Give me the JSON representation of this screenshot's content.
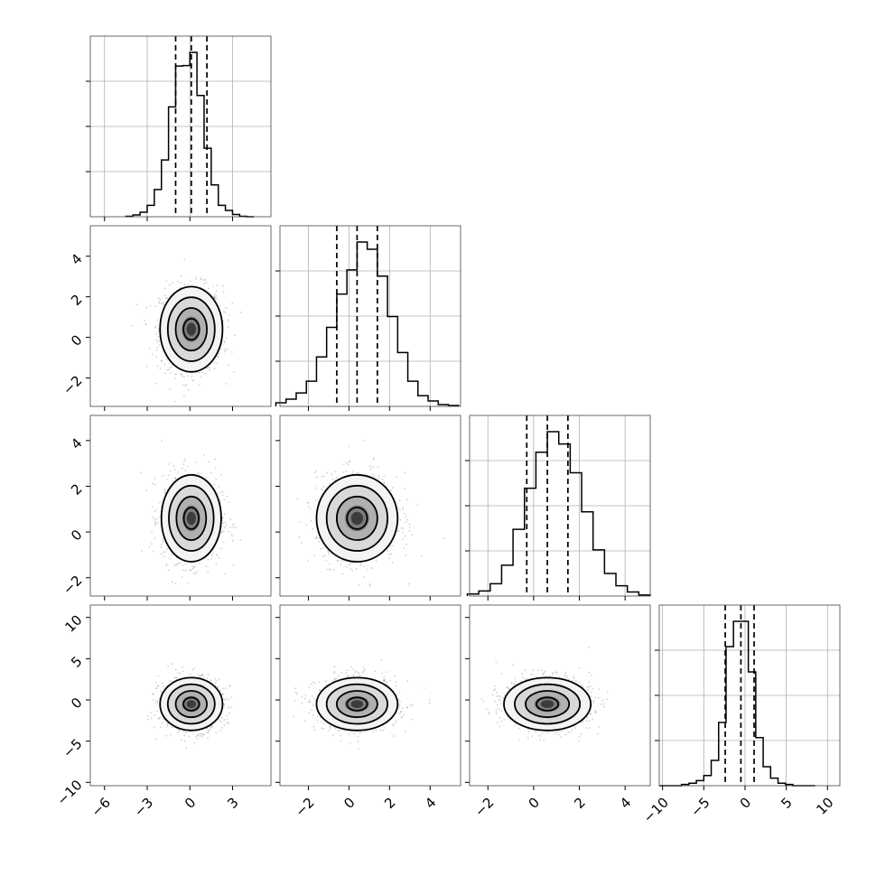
{
  "chart_data": {
    "type": "corner",
    "n_params": 4,
    "grid": true,
    "colors": {
      "line": "#000000",
      "grid": "#b0b0b0",
      "scatter": "#7a7a7a",
      "frame": "#444444"
    },
    "ranges": [
      [
        -7,
        5.7
      ],
      [
        -3.4,
        5.5
      ],
      [
        -2.8,
        5.1
      ],
      [
        -10.4,
        11.5
      ]
    ],
    "ticks": [
      [
        -6,
        -3,
        0,
        3
      ],
      [
        -2,
        0,
        2,
        4
      ],
      [
        -2,
        0,
        2,
        4
      ],
      [
        -10,
        -5,
        0,
        5,
        10
      ]
    ],
    "tick_labels": [
      [
        "−6",
        "−3",
        "0",
        "3"
      ],
      [
        "−2",
        "0",
        "2",
        "4"
      ],
      [
        "−2",
        "0",
        "2",
        "4"
      ],
      [
        "−10",
        "−5",
        "0",
        "5",
        "10"
      ]
    ],
    "histograms": [
      {
        "param": 0,
        "bin_edges": [
          -4.5,
          -4,
          -3.5,
          -3,
          -2.5,
          -2,
          -1.5,
          -1,
          -0.5,
          0,
          0.5,
          1,
          1.5,
          2,
          2.5,
          3,
          3.5,
          4,
          4.5
        ],
        "counts": [
          1,
          4,
          10,
          25,
          60,
          125,
          242,
          332,
          333,
          362,
          267,
          151,
          70,
          25,
          14,
          5,
          1,
          0
        ],
        "quantiles": [
          -1.0,
          0.1,
          1.2
        ]
      },
      {
        "param": 1,
        "bin_edges": [
          -3.6,
          -3.1,
          -2.6,
          -2.1,
          -1.6,
          -1.1,
          -0.6,
          -0.1,
          0.4,
          0.9,
          1.4,
          1.9,
          2.4,
          2.9,
          3.4,
          3.9,
          4.4,
          4.9,
          5.4
        ],
        "counts": [
          4,
          8,
          15,
          28,
          55,
          88,
          125,
          152,
          183,
          175,
          145,
          100,
          60,
          28,
          12,
          6,
          2,
          1
        ],
        "quantiles": [
          -0.6,
          0.4,
          1.4
        ]
      },
      {
        "param": 2,
        "bin_edges": [
          -2.9,
          -2.4,
          -1.9,
          -1.4,
          -0.9,
          -0.4,
          0.1,
          0.6,
          1.1,
          1.6,
          2.1,
          2.6,
          3.1,
          3.6,
          4.1,
          4.6,
          5.1
        ],
        "counts": [
          2,
          5,
          12,
          30,
          65,
          105,
          140,
          160,
          148,
          120,
          82,
          45,
          22,
          10,
          4,
          1
        ],
        "quantiles": [
          -0.3,
          0.6,
          1.5
        ]
      },
      {
        "param": 3,
        "bin_edges": [
          -10.4,
          -9.5,
          -8.6,
          -7.7,
          -6.8,
          -5.9,
          -5.0,
          -4.1,
          -3.2,
          -2.3,
          -1.4,
          -0.5,
          0.4,
          1.3,
          2.2,
          3.1,
          4.0,
          4.9,
          5.8,
          6.7,
          7.6,
          8.5
        ],
        "counts": [
          0,
          0,
          0,
          1,
          2,
          4,
          8,
          20,
          50,
          110,
          130,
          130,
          90,
          38,
          15,
          6,
          2,
          1,
          0,
          0,
          0
        ],
        "quantiles": [
          -2.4,
          -0.5,
          1.1
        ]
      }
    ],
    "pairs": [
      {
        "x_param": 0,
        "y_param": 1,
        "x_center": 0.1,
        "y_center": 0.4,
        "x_sd": 1.1,
        "y_sd": 1.05
      },
      {
        "x_param": 0,
        "y_param": 2,
        "x_center": 0.1,
        "y_center": 0.6,
        "x_sd": 1.05,
        "y_sd": 0.95
      },
      {
        "x_param": 1,
        "y_param": 2,
        "x_center": 0.4,
        "y_center": 0.6,
        "x_sd": 1.0,
        "y_sd": 0.95
      },
      {
        "x_param": 0,
        "y_param": 3,
        "x_center": 0.1,
        "y_center": -0.5,
        "x_sd": 1.1,
        "y_sd": 1.6
      },
      {
        "x_param": 1,
        "y_param": 3,
        "x_center": 0.4,
        "y_center": -0.5,
        "x_sd": 1.0,
        "y_sd": 1.6
      },
      {
        "x_param": 2,
        "y_param": 3,
        "x_center": 0.6,
        "y_center": -0.5,
        "x_sd": 0.95,
        "y_sd": 1.6
      }
    ],
    "contour_sigma_levels": [
      0.5,
      1.0,
      1.5,
      2.0
    ]
  }
}
